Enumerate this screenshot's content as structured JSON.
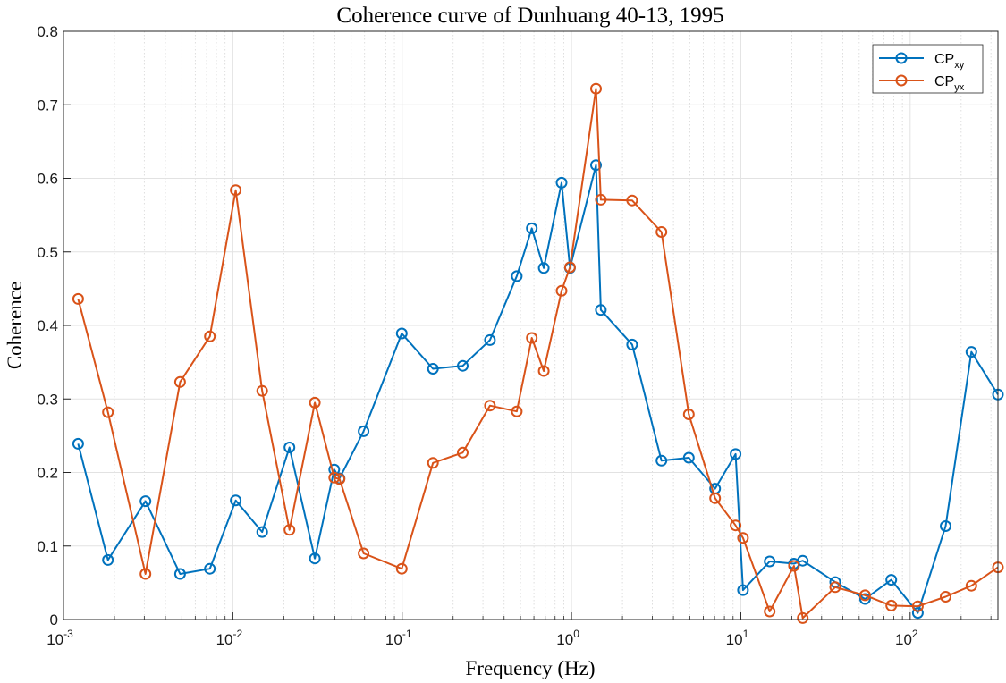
{
  "chart_data": {
    "type": "line",
    "title": "Coherence curve of Dunhuang 40-13, 1995",
    "xlabel": "Frequency (Hz)",
    "ylabel": "Coherence",
    "xscale": "log",
    "xlim": [
      0.001,
      330
    ],
    "ylim": [
      0,
      0.8
    ],
    "grid": true,
    "legend_position": "top-right",
    "x_ticks": [
      {
        "base": "10",
        "exp": "-3"
      },
      {
        "base": "10",
        "exp": "-2"
      },
      {
        "base": "10",
        "exp": "-1"
      },
      {
        "base": "10",
        "exp": "0"
      },
      {
        "base": "10",
        "exp": "1"
      },
      {
        "base": "10",
        "exp": "2"
      }
    ],
    "y_ticks": [
      "0",
      "0.1",
      "0.2",
      "0.3",
      "0.4",
      "0.5",
      "0.6",
      "0.7",
      "0.8"
    ],
    "series": [
      {
        "name": "CP",
        "name_sub": "xy",
        "color": "#0072BD",
        "x": [
          0.00122,
          0.00183,
          0.00305,
          0.00488,
          0.00732,
          0.0104,
          0.0149,
          0.0216,
          0.0305,
          0.0397,
          0.0427,
          0.0592,
          0.0995,
          0.152,
          0.228,
          0.33,
          0.475,
          0.583,
          0.686,
          0.874,
          0.98,
          1.395,
          1.49,
          2.28,
          3.4,
          4.93,
          7.05,
          9.31,
          10.3,
          14.8,
          20.6,
          23.2,
          36.1,
          54.2,
          77.4,
          111,
          162,
          230,
          330
        ],
        "values": [
          0.239,
          0.081,
          0.161,
          0.062,
          0.069,
          0.162,
          0.119,
          0.234,
          0.083,
          0.204,
          0.192,
          0.256,
          0.389,
          0.341,
          0.345,
          0.38,
          0.467,
          0.532,
          0.478,
          0.594,
          0.478,
          0.618,
          0.421,
          0.374,
          0.216,
          0.22,
          0.178,
          0.225,
          0.04,
          0.079,
          0.076,
          0.08,
          0.051,
          0.028,
          0.054,
          0.009,
          0.127,
          0.364,
          0.306
        ]
      },
      {
        "name": "CP",
        "name_sub": "yx",
        "color": "#D95319",
        "x": [
          0.00122,
          0.00183,
          0.00305,
          0.00488,
          0.00732,
          0.0104,
          0.0149,
          0.0216,
          0.0305,
          0.0397,
          0.0427,
          0.0592,
          0.0995,
          0.152,
          0.228,
          0.33,
          0.475,
          0.583,
          0.686,
          0.874,
          0.98,
          1.395,
          1.49,
          2.28,
          3.4,
          4.93,
          7.05,
          9.31,
          10.3,
          14.8,
          20.6,
          23.2,
          36.1,
          54.2,
          77.4,
          111,
          162,
          230,
          330
        ],
        "values": [
          0.436,
          0.282,
          0.062,
          0.323,
          0.385,
          0.584,
          0.311,
          0.122,
          0.295,
          0.193,
          0.191,
          0.09,
          0.069,
          0.213,
          0.227,
          0.291,
          0.283,
          0.383,
          0.338,
          0.447,
          0.479,
          0.722,
          0.571,
          0.57,
          0.527,
          0.279,
          0.165,
          0.128,
          0.111,
          0.011,
          0.073,
          0.002,
          0.044,
          0.033,
          0.019,
          0.018,
          0.031,
          0.046,
          0.071
        ]
      }
    ]
  }
}
